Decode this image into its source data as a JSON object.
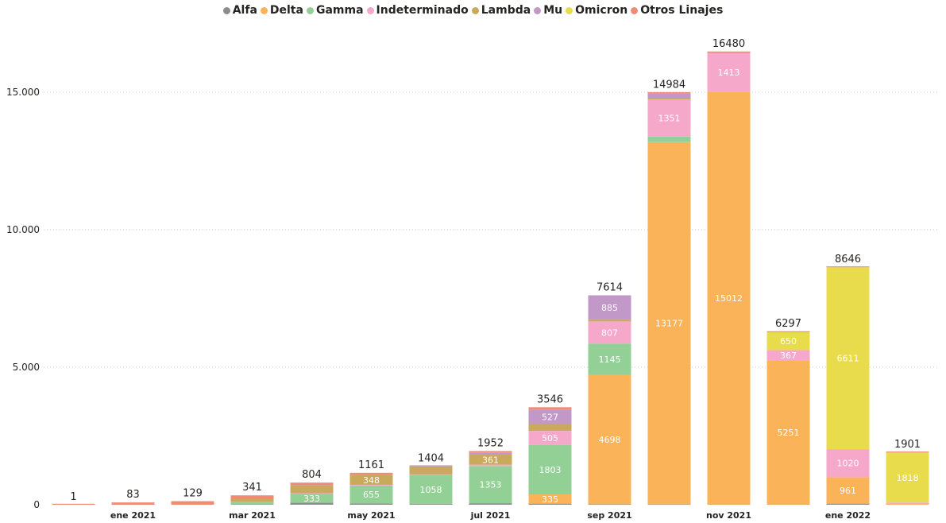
{
  "chart_data": {
    "type": "bar",
    "stacked": true,
    "categories": [
      "2020-12",
      "2021-01",
      "2021-02",
      "2021-03",
      "2021-04",
      "2021-05",
      "2021-06",
      "2021-07",
      "2021-08",
      "2021-09",
      "2021-10",
      "2021-11",
      "2021-12",
      "2022-01",
      "2022-02"
    ],
    "x_tick_labels": [
      "",
      "ene 2021",
      "",
      "mar 2021",
      "",
      "may 2021",
      "",
      "jul 2021",
      "",
      "sep 2021",
      "",
      "nov 2021",
      "",
      "ene 2022",
      ""
    ],
    "series": [
      {
        "name": "Alfa",
        "color": "#8c8c8c",
        "values": [
          0,
          0,
          0,
          12,
          70,
          45,
          25,
          55,
          40,
          15,
          10,
          5,
          5,
          40,
          0
        ]
      },
      {
        "name": "Delta",
        "color": "#fbb35a",
        "values": [
          0,
          0,
          0,
          0,
          0,
          0,
          0,
          0,
          335,
          4698,
          13177,
          15012,
          5251,
          961,
          20
        ]
      },
      {
        "name": "Gamma",
        "color": "#93d095",
        "values": [
          0,
          0,
          0,
          85,
          333,
          655,
          1058,
          1353,
          1803,
          1145,
          200,
          0,
          0,
          0,
          0
        ]
      },
      {
        "name": "Indeterminado",
        "color": "#f6a8cb",
        "values": [
          0,
          0,
          0,
          10,
          20,
          25,
          25,
          50,
          505,
          807,
          1351,
          1413,
          367,
          1020,
          60
        ]
      },
      {
        "name": "Lambda",
        "color": "#c9a95c",
        "values": [
          0,
          0,
          0,
          95,
          290,
          348,
          290,
          361,
          250,
          65,
          30,
          0,
          0,
          0,
          0
        ]
      },
      {
        "name": "Mu",
        "color": "#c298c8",
        "values": [
          0,
          0,
          0,
          4,
          6,
          10,
          6,
          83,
          527,
          885,
          200,
          0,
          0,
          0,
          0
        ]
      },
      {
        "name": "Omicron",
        "color": "#e9dc4c",
        "values": [
          0,
          0,
          0,
          0,
          0,
          0,
          0,
          0,
          0,
          0,
          0,
          0,
          650,
          6611,
          1818
        ]
      },
      {
        "name": "Otros Linajes",
        "color": "#f08c75",
        "values": [
          1,
          83,
          129,
          135,
          85,
          78,
          0,
          50,
          86,
          0,
          16,
          50,
          24,
          14,
          3
        ]
      }
    ],
    "totals": [
      1,
      83,
      129,
      341,
      804,
      1161,
      1404,
      1952,
      3546,
      7614,
      14984,
      16480,
      6297,
      8646,
      1901
    ],
    "segment_labels": [
      {
        "cat": 4,
        "series": "Gamma",
        "text": "333"
      },
      {
        "cat": 5,
        "series": "Gamma",
        "text": "655"
      },
      {
        "cat": 5,
        "series": "Lambda",
        "text": "348"
      },
      {
        "cat": 6,
        "series": "Gamma",
        "text": "1058"
      },
      {
        "cat": 7,
        "series": "Gamma",
        "text": "1353"
      },
      {
        "cat": 7,
        "series": "Lambda",
        "text": "361"
      },
      {
        "cat": 8,
        "series": "Delta",
        "text": "335"
      },
      {
        "cat": 8,
        "series": "Gamma",
        "text": "1803"
      },
      {
        "cat": 8,
        "series": "Indeterminado",
        "text": "505"
      },
      {
        "cat": 8,
        "series": "Mu",
        "text": "527"
      },
      {
        "cat": 9,
        "series": "Delta",
        "text": "4698"
      },
      {
        "cat": 9,
        "series": "Gamma",
        "text": "1145"
      },
      {
        "cat": 9,
        "series": "Indeterminado",
        "text": "807"
      },
      {
        "cat": 9,
        "series": "Mu",
        "text": "885"
      },
      {
        "cat": 10,
        "series": "Delta",
        "text": "13177"
      },
      {
        "cat": 10,
        "series": "Indeterminado",
        "text": "1351"
      },
      {
        "cat": 11,
        "series": "Delta",
        "text": "15012"
      },
      {
        "cat": 11,
        "series": "Indeterminado",
        "text": "1413"
      },
      {
        "cat": 12,
        "series": "Delta",
        "text": "5251"
      },
      {
        "cat": 12,
        "series": "Indeterminado",
        "text": "367"
      },
      {
        "cat": 12,
        "series": "Omicron",
        "text": "650"
      },
      {
        "cat": 13,
        "series": "Delta",
        "text": "961"
      },
      {
        "cat": 13,
        "series": "Indeterminado",
        "text": "1020"
      },
      {
        "cat": 13,
        "series": "Omicron",
        "text": "6611"
      },
      {
        "cat": 14,
        "series": "Omicron",
        "text": "1818"
      }
    ],
    "y_ticks": [
      0,
      5000,
      10000,
      15000
    ],
    "y_tick_labels": [
      "0",
      "5.000",
      "10.000",
      "15.000"
    ],
    "ylim": [
      0,
      17000
    ],
    "grid": true,
    "legend_position": "top-center"
  }
}
